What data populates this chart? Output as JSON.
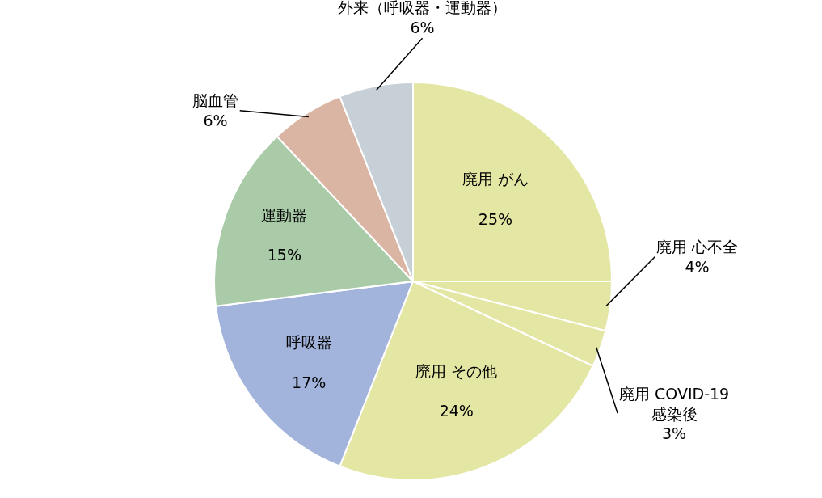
{
  "chart_data": {
    "type": "pie",
    "categories": [
      "廃用 がん",
      "廃用 心不全",
      "廃用 COVID-19\n感染後",
      "廃用 その他",
      "呼吸器",
      "運動器",
      "脳血管",
      "外来（呼吸器・運動器）"
    ],
    "values": [
      25,
      4,
      3,
      24,
      17,
      15,
      6,
      6
    ],
    "value_labels": [
      "25%",
      "4%",
      "3%",
      "24%",
      "17%",
      "15%",
      "6%",
      "6%"
    ],
    "colors": [
      "#e4e6a4",
      "#e4e6a4",
      "#e4e6a4",
      "#e4e6a4",
      "#a2b4db",
      "#a9cba8",
      "#dbb5a4",
      "#c6d0d6"
    ],
    "legend": false
  }
}
